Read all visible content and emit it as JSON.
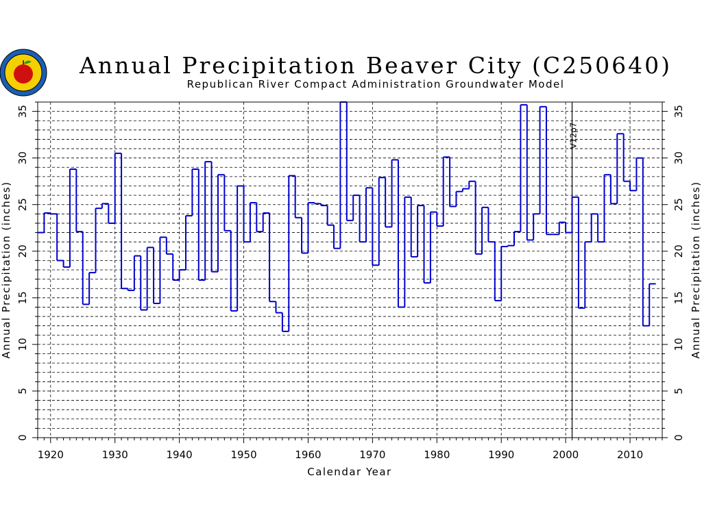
{
  "chart_data": {
    "type": "line",
    "title": "Annual Precipitation Beaver City (C250640)",
    "subtitle": "Republican River Compact Administration Groundwater Model",
    "xlabel": "Calendar Year",
    "ylabel": "Annual Precipitation (inches)",
    "xlim": [
      1918,
      2015
    ],
    "ylim": [
      0,
      36
    ],
    "x_ticks": [
      1920,
      1930,
      1940,
      1950,
      1960,
      1970,
      1980,
      1990,
      2000,
      2010
    ],
    "y_ticks": [
      0,
      5,
      10,
      15,
      20,
      25,
      30,
      35
    ],
    "grid": true,
    "step_style": "post",
    "line_color": "#0000cc",
    "annotation": {
      "label": "V12p7",
      "x": 2001
    },
    "series": [
      {
        "x": [
          1918,
          1919,
          1920,
          1921,
          1922,
          1923,
          1924,
          1925,
          1926,
          1927,
          1928,
          1929,
          1930,
          1931,
          1932,
          1933,
          1934,
          1935,
          1936,
          1937,
          1938,
          1939,
          1940,
          1941,
          1942,
          1943,
          1944,
          1945,
          1946,
          1947,
          1948,
          1949,
          1950,
          1951,
          1952,
          1953,
          1954,
          1955,
          1956,
          1957,
          1958,
          1959,
          1960,
          1961,
          1962,
          1963,
          1964,
          1965,
          1966,
          1967,
          1968,
          1969,
          1970,
          1971,
          1972,
          1973,
          1974,
          1975,
          1976,
          1977,
          1978,
          1979,
          1980,
          1981,
          1982,
          1983,
          1984,
          1985,
          1986,
          1987,
          1988,
          1989,
          1990,
          1991,
          1992,
          1993,
          1994,
          1995,
          1996,
          1997,
          1998,
          1999,
          2000,
          2001,
          2002,
          2003,
          2004,
          2005,
          2006,
          2007,
          2008,
          2009,
          2010,
          2011,
          2012,
          2013
        ],
        "values": [
          22.0,
          24.1,
          24.0,
          19.0,
          18.3,
          28.8,
          22.1,
          14.3,
          17.7,
          24.6,
          25.1,
          23.0,
          30.5,
          16.0,
          15.8,
          19.5,
          13.7,
          20.4,
          14.4,
          21.5,
          19.7,
          16.9,
          18.0,
          23.8,
          28.8,
          16.9,
          29.6,
          17.8,
          28.2,
          22.2,
          13.6,
          27.0,
          21.0,
          25.2,
          22.1,
          24.1,
          14.6,
          13.4,
          11.4,
          28.1,
          23.6,
          19.8,
          25.2,
          25.1,
          24.9,
          22.8,
          20.3,
          36.0,
          23.3,
          26.0,
          21.0,
          26.8,
          18.5,
          27.9,
          22.6,
          29.8,
          14.0,
          25.8,
          19.4,
          24.9,
          16.6,
          24.2,
          22.7,
          30.1,
          24.8,
          26.4,
          26.7,
          27.5,
          19.7,
          24.7,
          21.0,
          14.7,
          20.5,
          20.6,
          22.1,
          35.7,
          21.2,
          24.0,
          35.5,
          21.8,
          21.8,
          23.1,
          22.0,
          25.8,
          13.9,
          21.0,
          24.0,
          21.0,
          28.2,
          25.1,
          32.6,
          27.5,
          26.5,
          30.0,
          12.0,
          16.5
        ]
      }
    ]
  }
}
